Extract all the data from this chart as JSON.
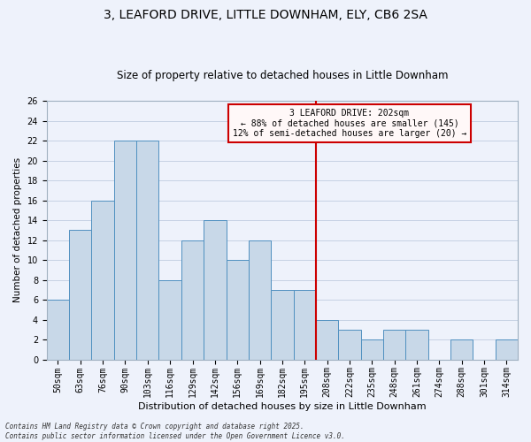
{
  "title": "3, LEAFORD DRIVE, LITTLE DOWNHAM, ELY, CB6 2SA",
  "subtitle": "Size of property relative to detached houses in Little Downham",
  "xlabel": "Distribution of detached houses by size in Little Downham",
  "ylabel": "Number of detached properties",
  "categories": [
    "50sqm",
    "63sqm",
    "76sqm",
    "90sqm",
    "103sqm",
    "116sqm",
    "129sqm",
    "142sqm",
    "156sqm",
    "169sqm",
    "182sqm",
    "195sqm",
    "208sqm",
    "222sqm",
    "235sqm",
    "248sqm",
    "261sqm",
    "274sqm",
    "288sqm",
    "301sqm",
    "314sqm"
  ],
  "values": [
    6,
    13,
    16,
    22,
    22,
    8,
    12,
    14,
    10,
    12,
    7,
    7,
    4,
    3,
    2,
    3,
    3,
    0,
    2,
    0,
    2
  ],
  "bar_color": "#c8d8e8",
  "bar_edge_color": "#5090c0",
  "background_color": "#eef2fb",
  "grid_color": "#c0cce0",
  "annotation_line_color": "#cc0000",
  "annotation_text_line1": "3 LEAFORD DRIVE: 202sqm",
  "annotation_text_line2": "← 88% of detached houses are smaller (145)",
  "annotation_text_line3": "12% of semi-detached houses are larger (20) →",
  "annotation_box_facecolor": "#fff8f8",
  "annotation_box_edge": "#cc0000",
  "ylim": [
    0,
    26
  ],
  "yticks": [
    0,
    2,
    4,
    6,
    8,
    10,
    12,
    14,
    16,
    18,
    20,
    22,
    24,
    26
  ],
  "footnote1": "Contains HM Land Registry data © Crown copyright and database right 2025.",
  "footnote2": "Contains public sector information licensed under the Open Government Licence v3.0.",
  "title_fontsize": 10,
  "subtitle_fontsize": 8.5,
  "xlabel_fontsize": 8,
  "ylabel_fontsize": 7.5,
  "tick_fontsize": 7,
  "annotation_fontsize": 7,
  "footnote_fontsize": 5.5
}
